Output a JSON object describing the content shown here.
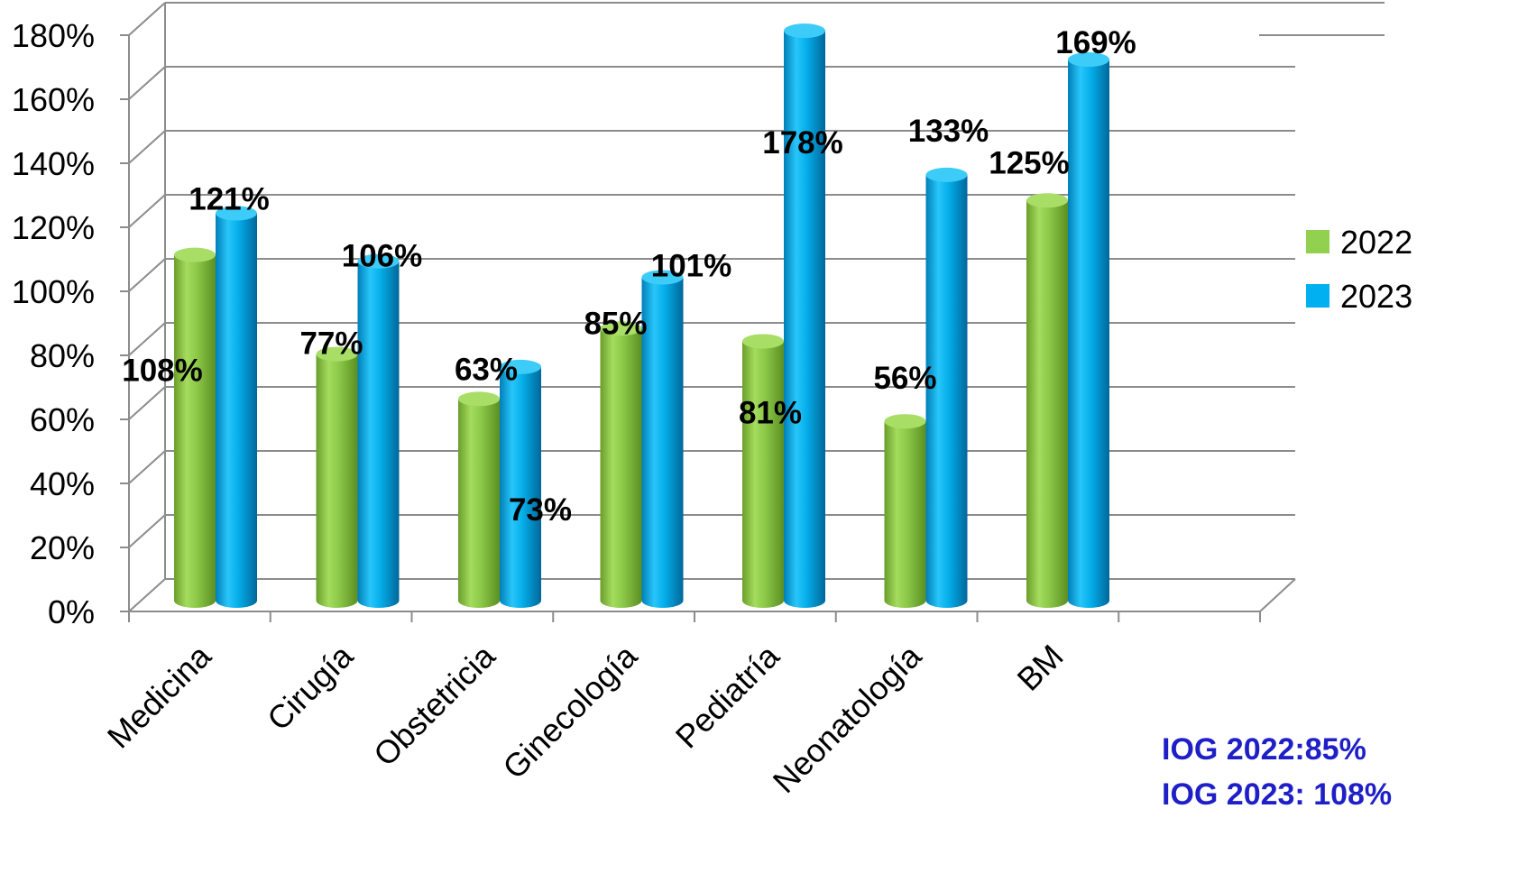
{
  "chart_data": {
    "type": "bar",
    "style": "3d-cylinder",
    "categories": [
      "Medicina",
      "Cirugía",
      "Obstetricia",
      "Ginecología",
      "Pediatría",
      "Neonatología",
      "BM"
    ],
    "series": [
      {
        "name": "2022",
        "values": [
          108,
          77,
          63,
          85,
          81,
          56,
          125
        ],
        "labels": [
          "108%",
          "77%",
          "63%",
          "85%",
          "81%",
          "56%",
          "125%"
        ],
        "color": "#92d050"
      },
      {
        "name": "2023",
        "values": [
          121,
          106,
          73,
          101,
          178,
          133,
          169
        ],
        "labels": [
          "121%",
          "106%",
          "73%",
          "101%",
          "178%",
          "133%",
          "169%"
        ],
        "color": "#00b0f0"
      }
    ],
    "yticks": [
      "0%",
      "20%",
      "40%",
      "60%",
      "80%",
      "100%",
      "120%",
      "140%",
      "160%",
      "180%"
    ],
    "ylim": [
      0,
      180
    ],
    "grid": true,
    "legend_position": "right",
    "title": "",
    "xlabel": "",
    "ylabel": ""
  },
  "notes": [
    "IOG 2022:85%",
    "IOG 2023: 108%"
  ]
}
